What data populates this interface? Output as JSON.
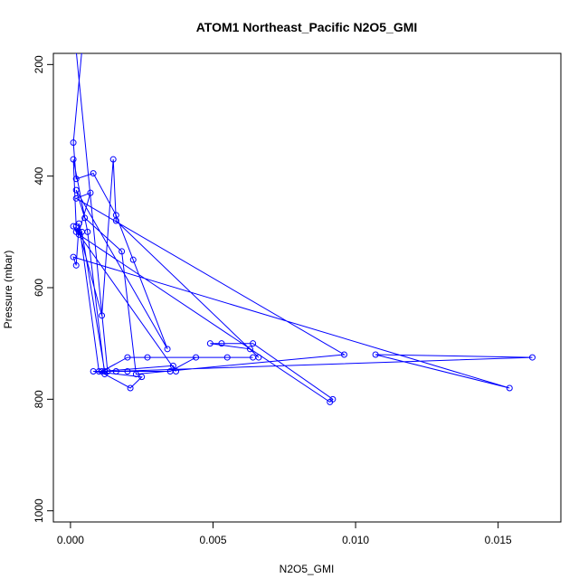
{
  "chart_data": {
    "type": "line",
    "title": "ATOM1 Northeast_Pacific N2O5_GMI",
    "xlabel": "N2O5_GMI",
    "ylabel": "Pressure (mbar)",
    "xlim": [
      -0.0006,
      0.0172
    ],
    "ylim": [
      1020,
      180
    ],
    "y_reversed": true,
    "x_ticks": [
      "0.000",
      "0.005",
      "0.010",
      "0.015"
    ],
    "x_tick_values": [
      0,
      0.005,
      0.01,
      0.015
    ],
    "y_ticks": [
      "200",
      "400",
      "600",
      "800",
      "1000"
    ],
    "y_tick_values": [
      200,
      400,
      600,
      800,
      1000
    ],
    "grid": false,
    "series": [
      {
        "color": "#0000ff",
        "marker": "open-circle",
        "x": [
          0.0004,
          0.0001,
          0.0002,
          0.0008,
          0.0016,
          0.0022,
          0.0034,
          0.0002,
          0.0005,
          0.0018,
          0.0023,
          0.0096,
          0.0002,
          0.0007,
          0.0003,
          0.0011,
          0.0015,
          0.0016,
          0.0066,
          0.0063,
          0.0049,
          0.0053,
          0.0064,
          0.0092,
          0.0091,
          0.0003,
          0.0002,
          0.0001,
          0.0006,
          0.0012,
          0.0021,
          0.0025,
          0.0008,
          0.0016,
          0.0162,
          0.0107,
          0.0154,
          0.0001,
          0.0002,
          0.0003,
          0.001,
          0.0035,
          0.0044,
          0.0055,
          0.0064,
          0.0027,
          0.002,
          0.0011,
          0.0036,
          0.0037,
          0.0001,
          0.0002,
          0.0004,
          0.0012,
          0.002,
          0.0013,
          0.0002
        ],
        "y": [
          175,
          340,
          405,
          395,
          470,
          550,
          710,
          425,
          475,
          535,
          755,
          720,
          440,
          430,
          500,
          650,
          370,
          480,
          725,
          710,
          700,
          700,
          700,
          800,
          805,
          505,
          490,
          370,
          500,
          755,
          780,
          760,
          750,
          750,
          725,
          720,
          780,
          545,
          560,
          485,
          750,
          750,
          725,
          725,
          725,
          725,
          725,
          750,
          740,
          750,
          490,
          500,
          500,
          750,
          750,
          750,
          175
        ]
      }
    ]
  }
}
